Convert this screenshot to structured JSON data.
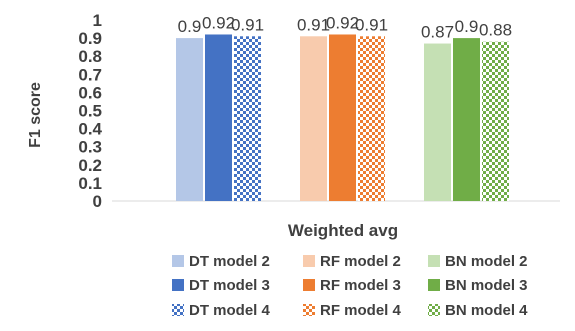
{
  "chart_data": {
    "type": "bar",
    "categories": [
      "Weighted avg"
    ],
    "xlabel": "Weighted avg",
    "ylabel": "F1 score",
    "ylim": [
      0,
      1
    ],
    "yticks": [
      "0",
      "0.1",
      "0.2",
      "0.3",
      "0.4",
      "0.5",
      "0.6",
      "0.7",
      "0.8",
      "0.9",
      "1"
    ],
    "grid": false,
    "legend_position": "bottom",
    "series": [
      {
        "name": "DT model 2",
        "values": [
          0.9
        ],
        "label": "0.9",
        "color": "#b4c7e7",
        "fill": "solid"
      },
      {
        "name": "DT model 3",
        "values": [
          0.92
        ],
        "label": "0.92",
        "color": "#4472c4",
        "fill": "solid"
      },
      {
        "name": "DT model 4",
        "values": [
          0.91
        ],
        "label": "0.91",
        "color": "#4472c4",
        "fill": "checker"
      },
      {
        "name": "RF model 2",
        "values": [
          0.91
        ],
        "label": "0.91",
        "color": "#f8cbad",
        "fill": "solid"
      },
      {
        "name": "RF model 3",
        "values": [
          0.92
        ],
        "label": "0.92",
        "color": "#ed7d31",
        "fill": "solid"
      },
      {
        "name": "RF model 4",
        "values": [
          0.91
        ],
        "label": "0.91",
        "color": "#ed7d31",
        "fill": "checker"
      },
      {
        "name": "BN model 2",
        "values": [
          0.87
        ],
        "label": "0.87",
        "color": "#c5e0b4",
        "fill": "solid"
      },
      {
        "name": "BN model 3",
        "values": [
          0.9
        ],
        "label": "0.9",
        "color": "#70ad47",
        "fill": "solid"
      },
      {
        "name": "BN model 4",
        "values": [
          0.88
        ],
        "label": "0.88",
        "color": "#70ad47",
        "fill": "checker"
      }
    ]
  }
}
